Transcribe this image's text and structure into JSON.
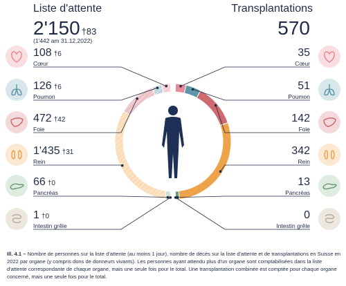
{
  "header": {
    "waitlist_title": "Liste d'attente",
    "waitlist_total": "2'150",
    "waitlist_deaths": "†83",
    "waitlist_note": "(1'442 am 31.12.2022)",
    "transplant_title": "Transplantations",
    "transplant_total": "570"
  },
  "organs": [
    {
      "name": "Cœur",
      "waitlist": "108",
      "deaths": "†6",
      "transplants": "35",
      "icon": "heart-icon",
      "color": "#e58b97",
      "bg": "#f8dde1"
    },
    {
      "name": "Poumon",
      "waitlist": "126",
      "deaths": "†6",
      "transplants": "51",
      "icon": "lungs-icon",
      "color": "#5f97a8",
      "bg": "#d8e7ec"
    },
    {
      "name": "Foie",
      "waitlist": "472",
      "deaths": "†42",
      "transplants": "142",
      "icon": "liver-icon",
      "color": "#cf6b6f",
      "bg": "#f4d9da"
    },
    {
      "name": "Rein",
      "waitlist": "1'435",
      "deaths": "†31",
      "transplants": "342",
      "icon": "kidneys-icon",
      "color": "#eea24a",
      "bg": "#fbe8d2"
    },
    {
      "name": "Pancréas",
      "waitlist": "66",
      "deaths": "†0",
      "transplants": "13",
      "icon": "pancreas-icon",
      "color": "#6d9b78",
      "bg": "#dfece2"
    },
    {
      "name": "Intestin grêle",
      "waitlist": "1",
      "deaths": "†0",
      "transplants": "0",
      "icon": "intestine-icon",
      "color": "#b9ac98",
      "bg": "#ece7df"
    }
  ],
  "chart_data": {
    "type": "donut",
    "categories": [
      "Cœur",
      "Poumon",
      "Foie",
      "Rein",
      "Pancréas",
      "Intestin grêle"
    ],
    "series": [
      {
        "name": "Liste d'attente",
        "values": [
          108,
          126,
          472,
          1435,
          66,
          1
        ],
        "side": "left",
        "style": "hatched"
      },
      {
        "name": "Transplantations",
        "values": [
          35,
          51,
          142,
          342,
          13,
          0
        ],
        "side": "right",
        "style": "solid"
      }
    ],
    "deaths": [
      6,
      6,
      42,
      31,
      0,
      0
    ],
    "colors": [
      "#e58b97",
      "#5f97a8",
      "#cf6b6f",
      "#eea24a",
      "#6d9b78",
      "#b9ac98"
    ],
    "light_colors": [
      "#f6c9cf",
      "#bcd5dd",
      "#ecc1c3",
      "#fbdcb6",
      "#c7dccb",
      "#ddd6ca"
    ]
  },
  "caption": {
    "label": "Ill. 4.1 –",
    "text": " Nombre de personnes sur la liste d'attente (au moins 1 jour), nombre de décès sur la liste d'attente et de transplantations en Suisse en 2022 par organe (y compris dons de donneurs vivants). Les personnes ayant attendu plus d'un organe sont comptabilisées dans la liste d'attente correspondante de chaque organe, mais une seule fois pour le total. Une transplantation combinée est comptée pour chaque organe concerné, mais une seule fois pour le total."
  }
}
